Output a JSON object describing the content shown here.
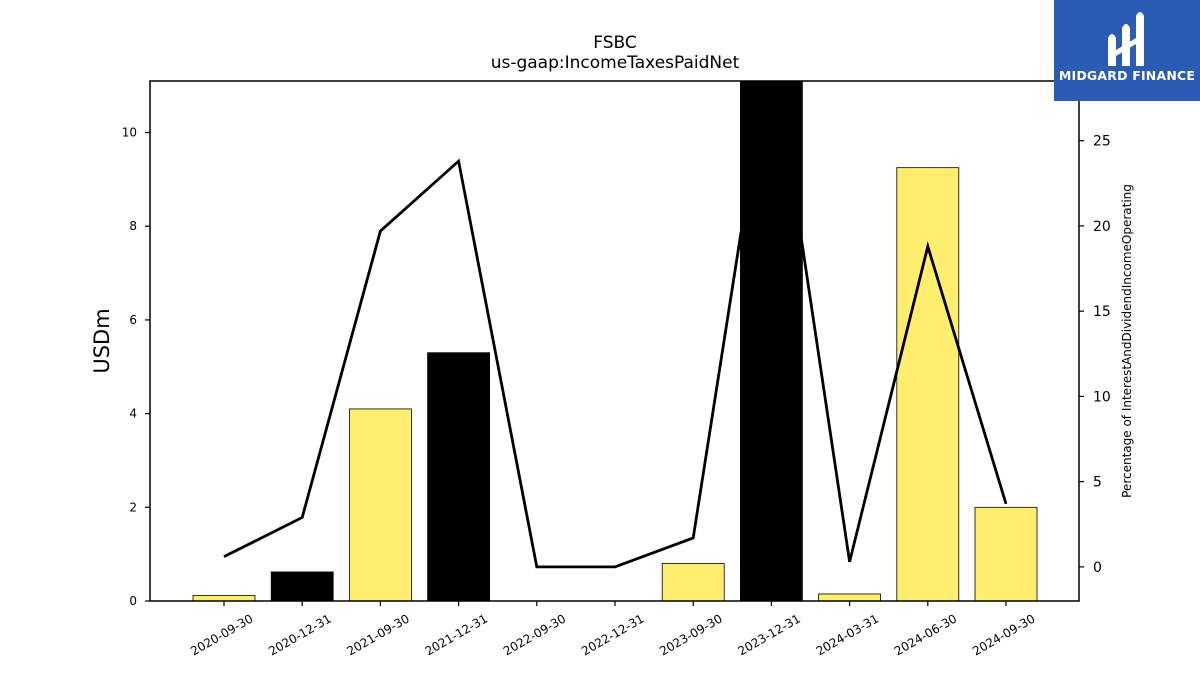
{
  "chart_data": {
    "type": "bar",
    "title": "FSBC",
    "subtitle": "us-gaap:IncomeTaxesPaidNet",
    "ylabel": "USDm",
    "ylabel_right": "Percentage of InterestAndDividendIncomeOperating",
    "categories": [
      "2020-09-30",
      "2020-12-31",
      "2021-09-30",
      "2021-12-31",
      "2022-09-30",
      "2022-12-31",
      "2023-09-30",
      "2023-12-31",
      "2024-03-31",
      "2024-06-30",
      "2024-09-30"
    ],
    "series": [
      {
        "axis": "left",
        "kind": "bar",
        "values": [
          0.12,
          0.62,
          4.1,
          5.3,
          0.0,
          0.0,
          0.8,
          11.1,
          0.15,
          9.25,
          2.0
        ],
        "colors": [
          "#ffed6f",
          "#000000",
          "#ffed6f",
          "#000000",
          "#ffed6f",
          "#ffed6f",
          "#ffed6f",
          "#000000",
          "#ffed6f",
          "#ffed6f",
          "#ffed6f"
        ]
      },
      {
        "axis": "right",
        "kind": "line",
        "values": [
          0.6,
          2.9,
          19.7,
          23.8,
          0.0,
          0.0,
          1.7,
          31.0,
          0.3,
          18.8,
          3.7
        ]
      }
    ],
    "ylim": [
      0,
      11.1
    ],
    "ylim_right": [
      -2.0,
      28.5
    ],
    "yticks": [
      0,
      2,
      4,
      6,
      8,
      10
    ],
    "yticks_right": [
      0,
      5,
      10,
      15,
      20,
      25
    ],
    "grid": false
  },
  "logo": {
    "text": "MIDGARD FINANCE",
    "bg_color": "#2b5cb3"
  }
}
